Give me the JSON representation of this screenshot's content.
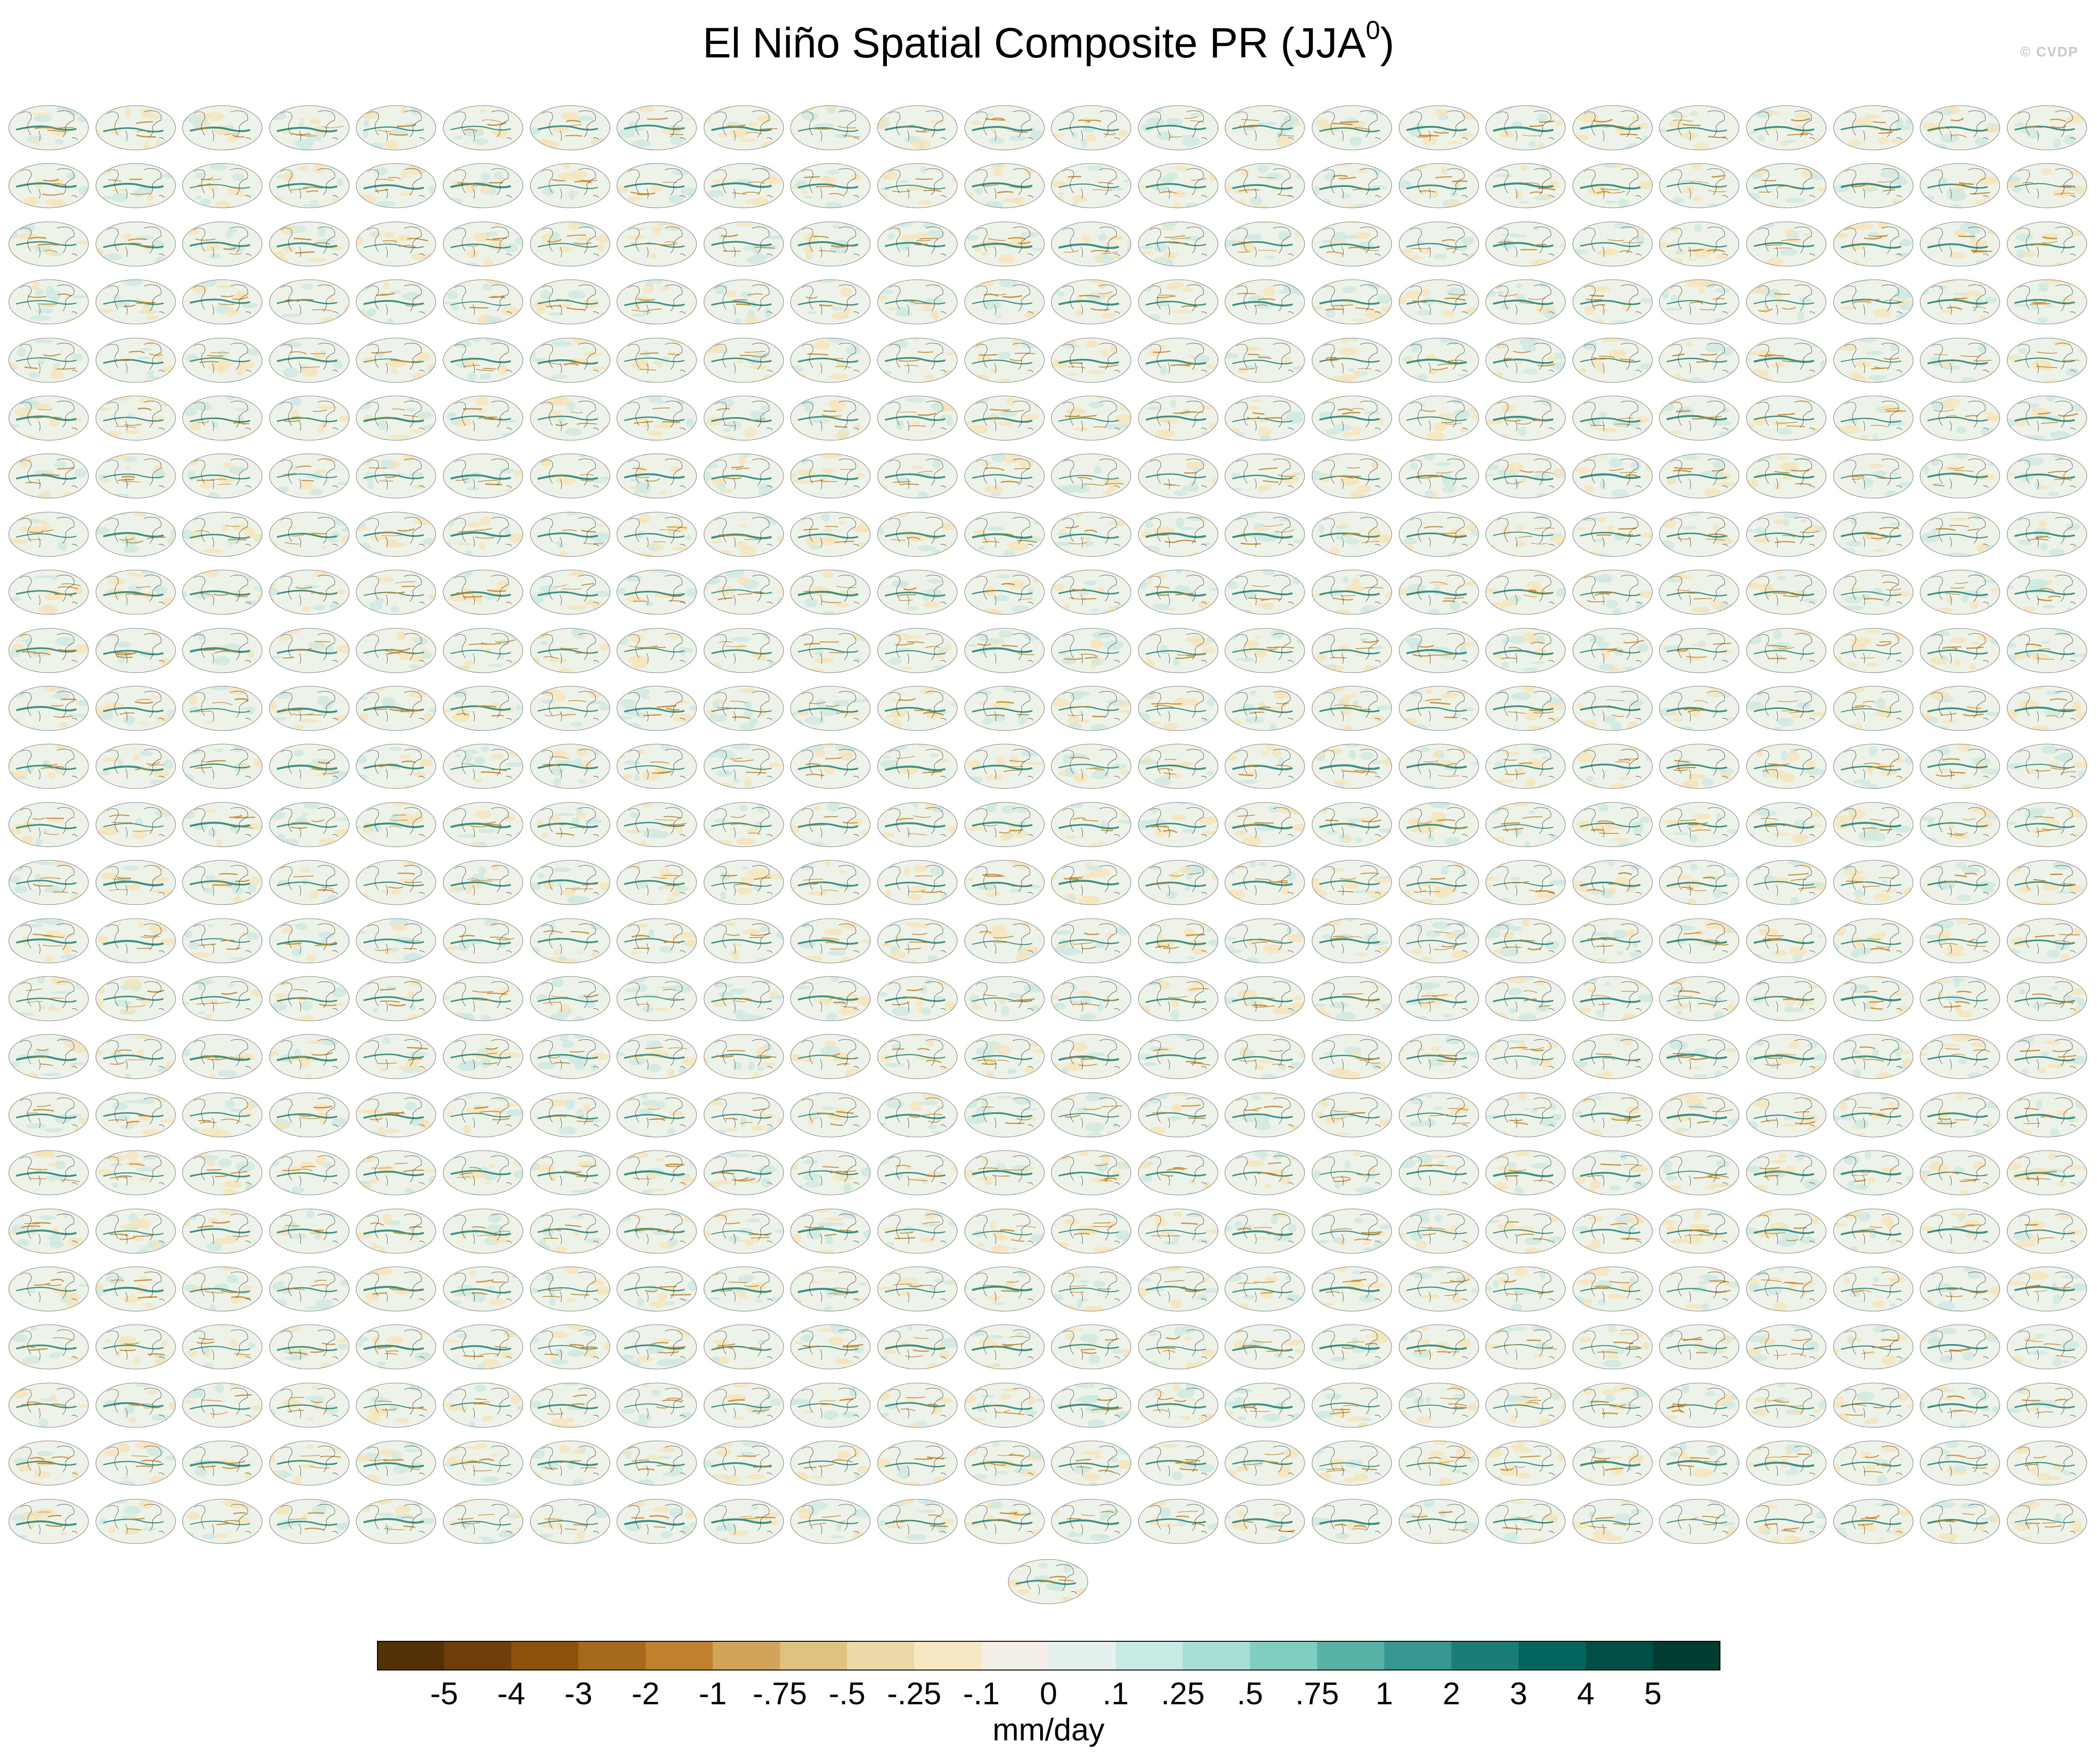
{
  "figure": {
    "title": "El Niño Spatial Composite PR (JJA",
    "title_superscript": "0",
    "title_suffix": ")",
    "watermark": "© CVDP",
    "panel_grid": {
      "columns": 24,
      "rows": 25,
      "extra_panels": 1
    },
    "panel_palette": {
      "ocean": "#eef3ea",
      "wet": "#1c8070",
      "dry": "#c48a2a",
      "coast": "#222222",
      "title_color": "#4a8ab0"
    }
  },
  "colorbar": {
    "units": "mm/day",
    "tick_labels": [
      "-5",
      "-4",
      "-3",
      "-2",
      "-1",
      "-.75",
      "-.5",
      "-.25",
      "-.1",
      "0",
      ".1",
      ".25",
      ".5",
      ".75",
      "1",
      "2",
      "3",
      "4",
      "5"
    ],
    "colors": [
      "#543005",
      "#6f3d09",
      "#8c510a",
      "#a76a1c",
      "#bf812d",
      "#d1a459",
      "#dfc27d",
      "#ecd9a7",
      "#f6e8c3",
      "#f3efe7",
      "#e4f1ee",
      "#c7eae5",
      "#a8ddd5",
      "#80cdc1",
      "#58b2a5",
      "#35978f",
      "#1a7e76",
      "#01665e",
      "#004f46",
      "#003c30"
    ]
  }
}
